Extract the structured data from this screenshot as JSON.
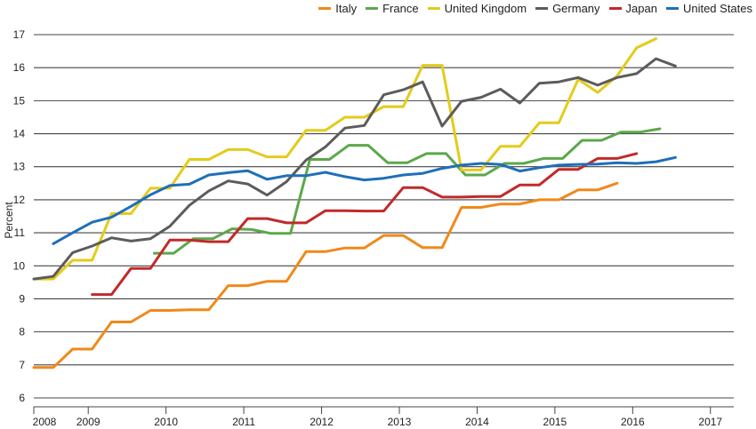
{
  "chart_data": {
    "type": "line",
    "title": "",
    "xlabel": "",
    "ylabel": "Percent",
    "ylim": [
      6,
      17
    ],
    "yticks": [
      6,
      7,
      8,
      9,
      10,
      11,
      12,
      13,
      14,
      15,
      16,
      17
    ],
    "xlim": [
      2008,
      2017
    ],
    "xticks": [
      {
        "label": "2008",
        "x": 2008
      },
      {
        "label": "2009",
        "x": 2008.7
      },
      {
        "label": "2010",
        "x": 2009.7
      },
      {
        "label": "2011",
        "x": 2010.7
      },
      {
        "label": "2012",
        "x": 2011.7
      },
      {
        "label": "2013",
        "x": 2012.7
      },
      {
        "label": "2014",
        "x": 2013.7
      },
      {
        "label": "2015",
        "x": 2014.7
      },
      {
        "label": "2016",
        "x": 2015.7
      },
      {
        "label": "2017",
        "x": 2016.7
      }
    ],
    "grid": true,
    "legend_position": "top-right",
    "series": [
      {
        "name": "Italy",
        "color": "#f0891a",
        "points": [
          [
            2008,
            6.92
          ],
          [
            2008.25,
            6.92
          ],
          [
            2008.5,
            7.48
          ],
          [
            2008.75,
            7.48
          ],
          [
            2009,
            8.3
          ],
          [
            2009.25,
            8.3
          ],
          [
            2009.5,
            8.65
          ],
          [
            2009.75,
            8.65
          ],
          [
            2010,
            8.67
          ],
          [
            2010.25,
            8.67
          ],
          [
            2010.5,
            9.4
          ],
          [
            2010.75,
            9.4
          ],
          [
            2011,
            9.53
          ],
          [
            2011.25,
            9.53
          ],
          [
            2011.5,
            10.43
          ],
          [
            2011.75,
            10.43
          ],
          [
            2012,
            10.54
          ],
          [
            2012.25,
            10.54
          ],
          [
            2012.5,
            10.92
          ],
          [
            2012.75,
            10.92
          ],
          [
            2013,
            10.55
          ],
          [
            2013.25,
            10.55
          ],
          [
            2013.5,
            11.77
          ],
          [
            2013.75,
            11.77
          ],
          [
            2014,
            11.87
          ],
          [
            2014.25,
            11.87
          ],
          [
            2014.5,
            12.0
          ],
          [
            2014.75,
            12.0
          ],
          [
            2015,
            12.3
          ],
          [
            2015.25,
            12.3
          ],
          [
            2015.5,
            12.5
          ]
        ]
      },
      {
        "name": "France",
        "color": "#5ba84a",
        "points": [
          [
            2009.55,
            10.38
          ],
          [
            2009.8,
            10.38
          ],
          [
            2010.05,
            10.82
          ],
          [
            2010.3,
            10.82
          ],
          [
            2010.55,
            11.12
          ],
          [
            2010.8,
            11.1
          ],
          [
            2011.05,
            10.98
          ],
          [
            2011.3,
            10.98
          ],
          [
            2011.55,
            13.22
          ],
          [
            2011.8,
            13.22
          ],
          [
            2012.05,
            13.65
          ],
          [
            2012.3,
            13.65
          ],
          [
            2012.55,
            13.12
          ],
          [
            2012.8,
            13.12
          ],
          [
            2013.05,
            13.4
          ],
          [
            2013.3,
            13.4
          ],
          [
            2013.55,
            12.75
          ],
          [
            2013.8,
            12.75
          ],
          [
            2014.05,
            13.1
          ],
          [
            2014.3,
            13.1
          ],
          [
            2014.55,
            13.25
          ],
          [
            2014.8,
            13.25
          ],
          [
            2015.05,
            13.8
          ],
          [
            2015.3,
            13.8
          ],
          [
            2015.55,
            14.05
          ],
          [
            2015.8,
            14.05
          ],
          [
            2016.05,
            14.15
          ]
        ]
      },
      {
        "name": "United Kingdom",
        "color": "#e3cc1a",
        "points": [
          [
            2008,
            9.6
          ],
          [
            2008.25,
            9.6
          ],
          [
            2008.5,
            10.17
          ],
          [
            2008.75,
            10.17
          ],
          [
            2009,
            11.58
          ],
          [
            2009.25,
            11.58
          ],
          [
            2009.5,
            12.35
          ],
          [
            2009.75,
            12.35
          ],
          [
            2010,
            13.22
          ],
          [
            2010.25,
            13.22
          ],
          [
            2010.5,
            13.52
          ],
          [
            2010.75,
            13.52
          ],
          [
            2011,
            13.3
          ],
          [
            2011.25,
            13.3
          ],
          [
            2011.5,
            14.1
          ],
          [
            2011.75,
            14.1
          ],
          [
            2012,
            14.5
          ],
          [
            2012.25,
            14.5
          ],
          [
            2012.5,
            14.82
          ],
          [
            2012.75,
            14.82
          ],
          [
            2013,
            16.07
          ],
          [
            2013.25,
            16.07
          ],
          [
            2013.5,
            12.9
          ],
          [
            2013.75,
            12.9
          ],
          [
            2014,
            13.62
          ],
          [
            2014.25,
            13.62
          ],
          [
            2014.5,
            14.33
          ],
          [
            2014.75,
            14.33
          ],
          [
            2015,
            15.65
          ],
          [
            2015.25,
            15.25
          ],
          [
            2015.5,
            15.75
          ],
          [
            2015.75,
            16.6
          ],
          [
            2016,
            16.88
          ]
        ]
      },
      {
        "name": "Germany",
        "color": "#5c5c5c",
        "points": [
          [
            2008,
            9.6
          ],
          [
            2008.25,
            9.68
          ],
          [
            2008.5,
            10.4
          ],
          [
            2008.75,
            10.6
          ],
          [
            2009,
            10.85
          ],
          [
            2009.25,
            10.75
          ],
          [
            2009.5,
            10.82
          ],
          [
            2009.75,
            11.2
          ],
          [
            2010,
            11.83
          ],
          [
            2010.25,
            12.27
          ],
          [
            2010.5,
            12.57
          ],
          [
            2010.75,
            12.48
          ],
          [
            2011,
            12.14
          ],
          [
            2011.25,
            12.55
          ],
          [
            2011.5,
            13.2
          ],
          [
            2011.75,
            13.6
          ],
          [
            2012,
            14.17
          ],
          [
            2012.25,
            14.25
          ],
          [
            2012.5,
            15.18
          ],
          [
            2012.75,
            15.33
          ],
          [
            2013,
            15.57
          ],
          [
            2013.25,
            14.23
          ],
          [
            2013.5,
            14.98
          ],
          [
            2013.75,
            15.1
          ],
          [
            2014,
            15.35
          ],
          [
            2014.25,
            14.93
          ],
          [
            2014.5,
            15.53
          ],
          [
            2014.75,
            15.57
          ],
          [
            2015,
            15.7
          ],
          [
            2015.25,
            15.47
          ],
          [
            2015.5,
            15.7
          ],
          [
            2015.75,
            15.82
          ],
          [
            2016,
            16.27
          ],
          [
            2016.25,
            16.05
          ]
        ]
      },
      {
        "name": "Japan",
        "color": "#c12a2a",
        "points": [
          [
            2008.75,
            9.13
          ],
          [
            2009,
            9.13
          ],
          [
            2009.25,
            9.92
          ],
          [
            2009.5,
            9.92
          ],
          [
            2009.75,
            10.78
          ],
          [
            2010,
            10.78
          ],
          [
            2010.25,
            10.73
          ],
          [
            2010.5,
            10.73
          ],
          [
            2010.75,
            11.43
          ],
          [
            2011,
            11.43
          ],
          [
            2011.25,
            11.3
          ],
          [
            2011.5,
            11.3
          ],
          [
            2011.75,
            11.67
          ],
          [
            2012,
            11.67
          ],
          [
            2012.25,
            11.66
          ],
          [
            2012.5,
            11.66
          ],
          [
            2012.75,
            12.37
          ],
          [
            2013,
            12.37
          ],
          [
            2013.25,
            12.08
          ],
          [
            2013.5,
            12.08
          ],
          [
            2013.75,
            12.1
          ],
          [
            2014,
            12.1
          ],
          [
            2014.25,
            12.45
          ],
          [
            2014.5,
            12.45
          ],
          [
            2014.75,
            12.92
          ],
          [
            2015,
            12.92
          ],
          [
            2015.25,
            13.25
          ],
          [
            2015.5,
            13.25
          ],
          [
            2015.75,
            13.4
          ]
        ]
      },
      {
        "name": "United States",
        "color": "#1f6fb8",
        "points": [
          [
            2008.25,
            10.67
          ],
          [
            2008.5,
            11.0
          ],
          [
            2008.75,
            11.32
          ],
          [
            2009,
            11.47
          ],
          [
            2009.25,
            11.8
          ],
          [
            2009.5,
            12.15
          ],
          [
            2009.75,
            12.43
          ],
          [
            2010,
            12.47
          ],
          [
            2010.25,
            12.75
          ],
          [
            2010.5,
            12.82
          ],
          [
            2010.75,
            12.88
          ],
          [
            2011,
            12.62
          ],
          [
            2011.25,
            12.73
          ],
          [
            2011.5,
            12.73
          ],
          [
            2011.75,
            12.83
          ],
          [
            2012,
            12.7
          ],
          [
            2012.25,
            12.6
          ],
          [
            2012.5,
            12.65
          ],
          [
            2012.75,
            12.75
          ],
          [
            2013,
            12.8
          ],
          [
            2013.25,
            12.95
          ],
          [
            2013.5,
            13.05
          ],
          [
            2013.75,
            13.1
          ],
          [
            2014,
            13.07
          ],
          [
            2014.25,
            12.87
          ],
          [
            2014.5,
            12.97
          ],
          [
            2014.75,
            13.05
          ],
          [
            2015,
            13.07
          ],
          [
            2015.25,
            13.08
          ],
          [
            2015.5,
            13.12
          ],
          [
            2015.75,
            13.1
          ],
          [
            2016,
            13.15
          ],
          [
            2016.25,
            13.28
          ]
        ]
      }
    ]
  }
}
